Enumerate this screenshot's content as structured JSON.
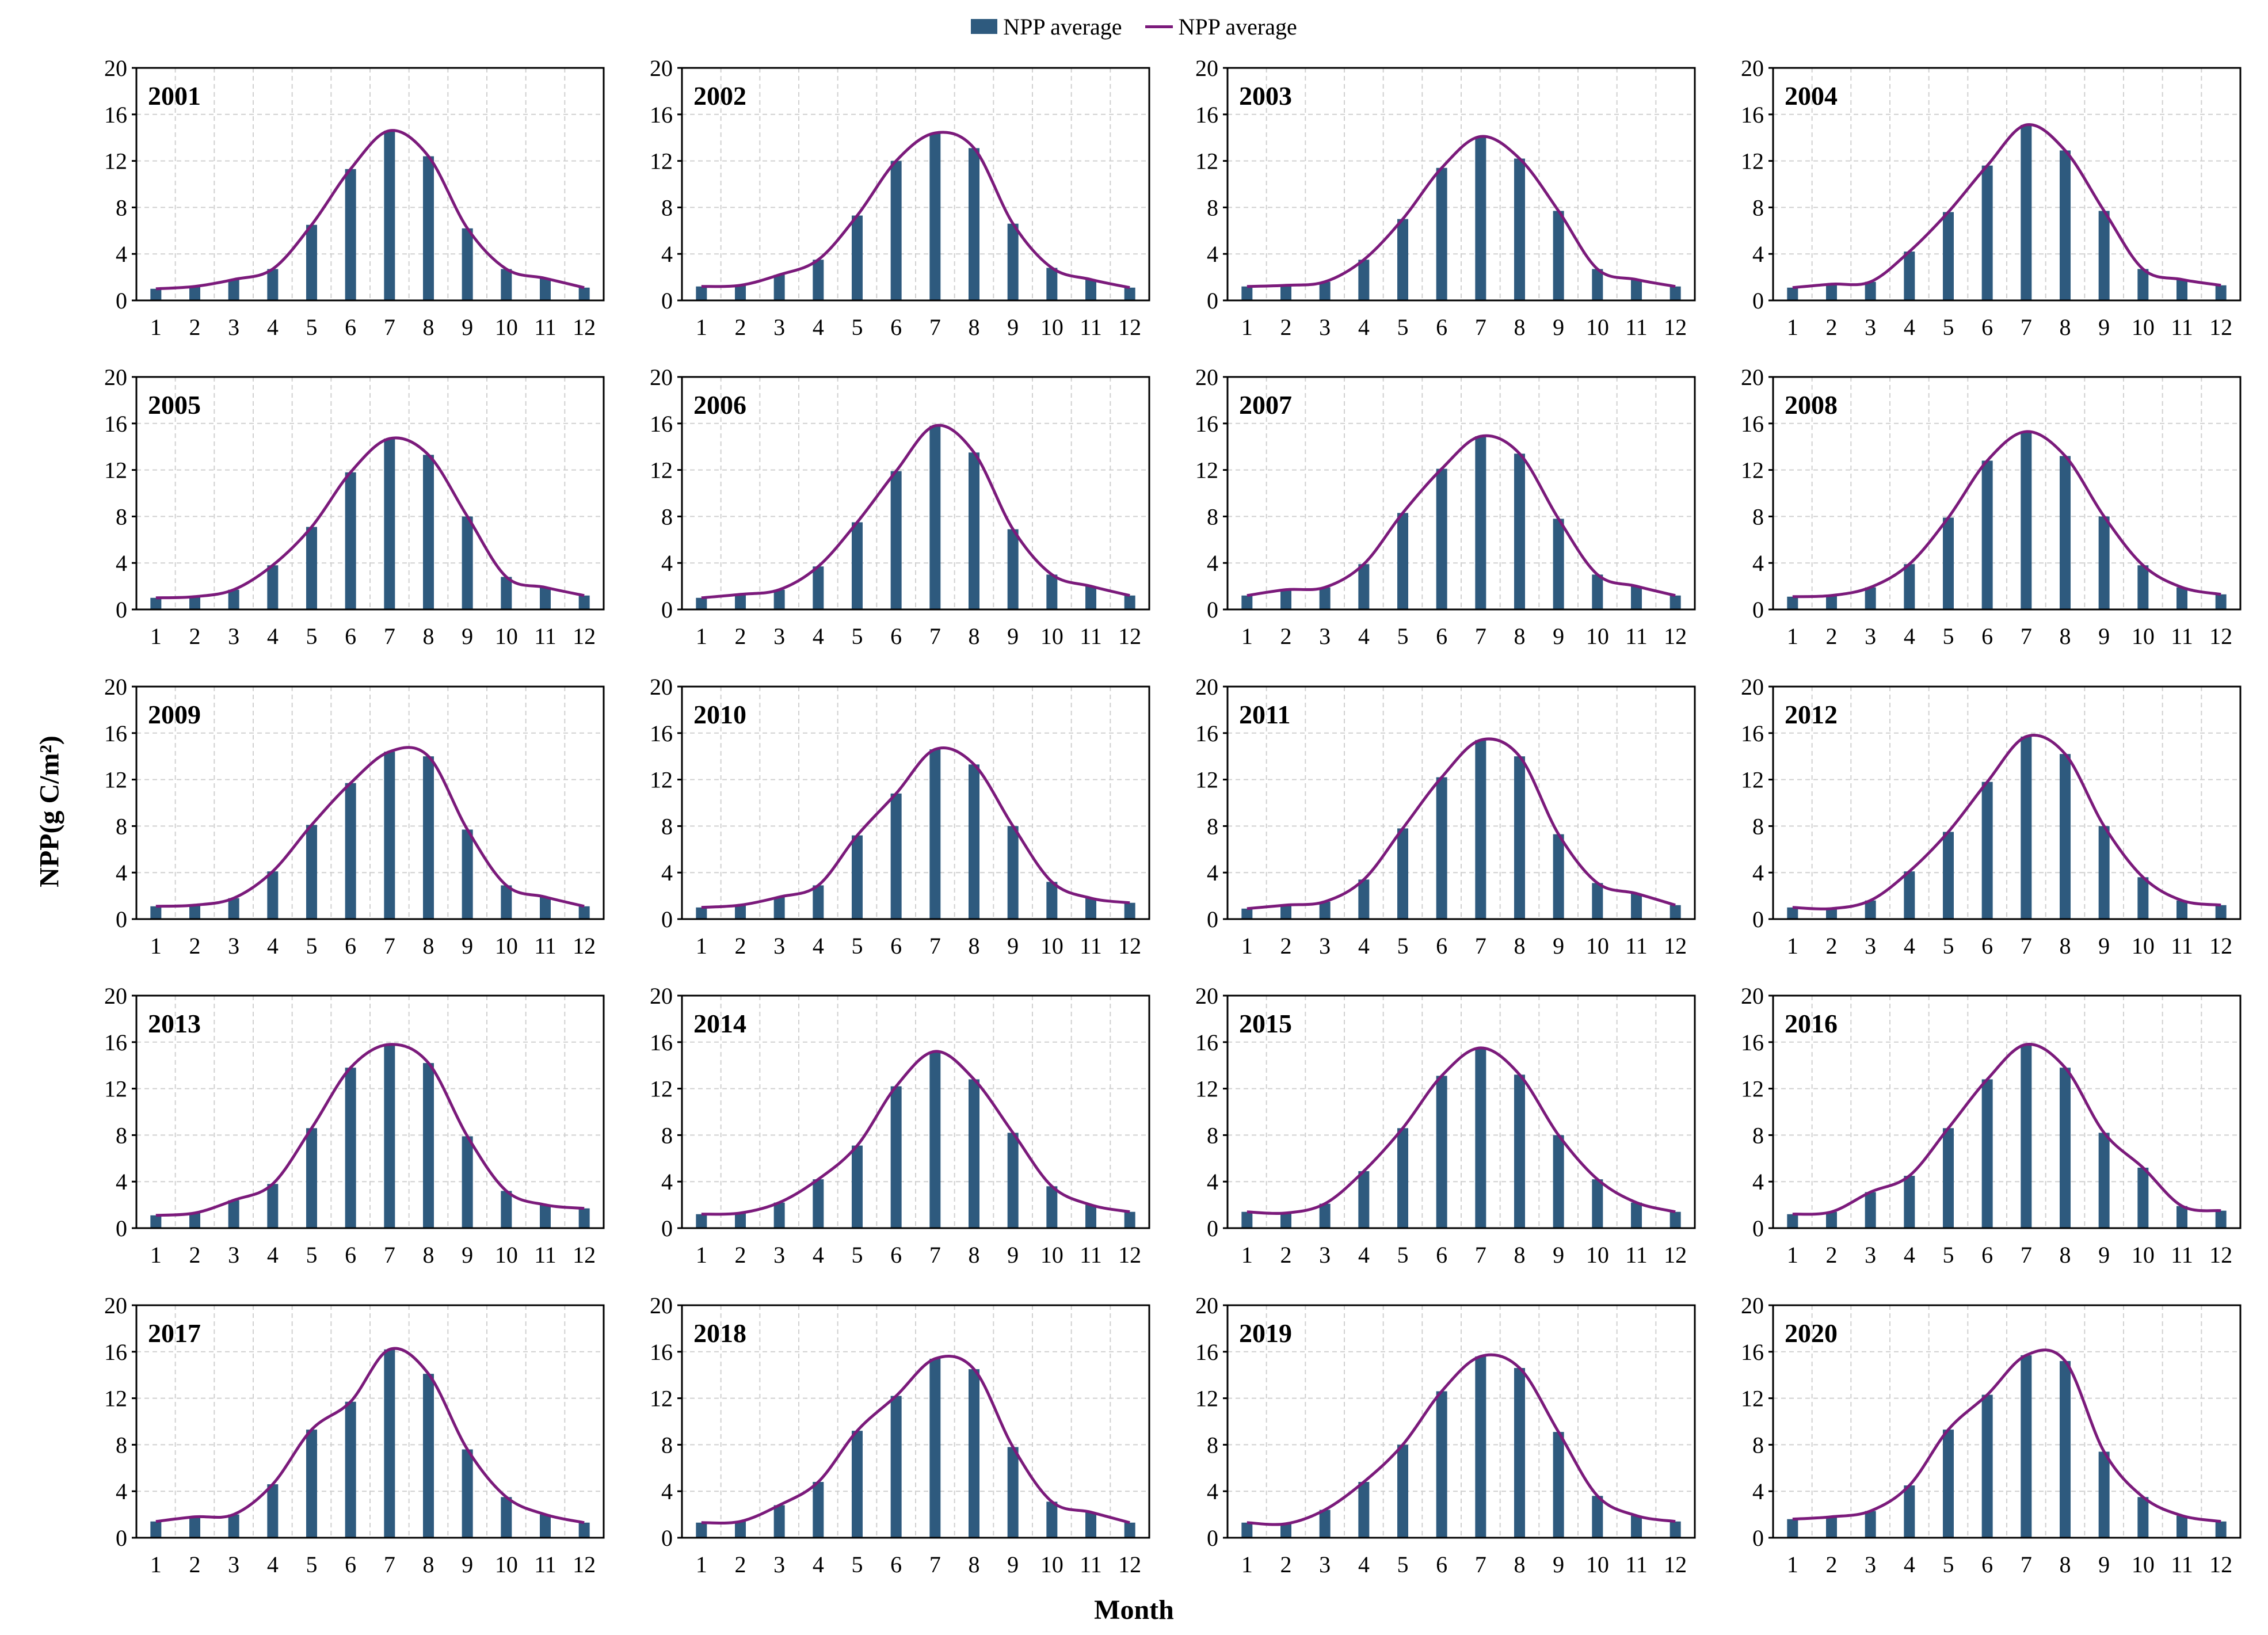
{
  "legend": {
    "bar_label": "NPP average",
    "line_label": "NPP average"
  },
  "axes": {
    "ylabel": "NPP(g C/m²)",
    "xlabel": "Month"
  },
  "colors": {
    "bar": "#2e5a7e",
    "line": "#7b1a7b",
    "grid": "#d0d0d0",
    "frame": "#000000"
  },
  "chart_data": {
    "type": "bar",
    "layout": "small multiples, 5 rows x 4 columns",
    "categories": [
      "1",
      "2",
      "3",
      "4",
      "5",
      "6",
      "7",
      "8",
      "9",
      "10",
      "11",
      "12"
    ],
    "ylim": [
      0,
      20
    ],
    "yticks": [
      0,
      4,
      8,
      12,
      16,
      20
    ],
    "grid": true,
    "legend_position": "top-center",
    "panels": [
      {
        "title": "2001",
        "values": [
          1.0,
          1.2,
          1.8,
          2.7,
          6.5,
          11.3,
          14.6,
          12.4,
          6.2,
          2.7,
          1.9,
          1.1
        ]
      },
      {
        "title": "2002",
        "values": [
          1.2,
          1.3,
          2.2,
          3.5,
          7.3,
          12.0,
          14.4,
          13.1,
          6.6,
          2.8,
          1.8,
          1.1
        ]
      },
      {
        "title": "2003",
        "values": [
          1.2,
          1.3,
          1.6,
          3.5,
          7.0,
          11.4,
          14.1,
          12.2,
          7.7,
          2.7,
          1.8,
          1.2
        ]
      },
      {
        "title": "2004",
        "values": [
          1.1,
          1.4,
          1.6,
          4.2,
          7.6,
          11.6,
          15.1,
          12.9,
          7.7,
          2.7,
          1.8,
          1.3
        ]
      },
      {
        "title": "2005",
        "values": [
          1.0,
          1.1,
          1.7,
          3.8,
          7.1,
          11.8,
          14.7,
          13.3,
          8.0,
          2.8,
          1.9,
          1.2
        ]
      },
      {
        "title": "2006",
        "values": [
          1.0,
          1.3,
          1.7,
          3.7,
          7.5,
          11.9,
          15.8,
          13.5,
          6.9,
          3.0,
          2.0,
          1.2
        ]
      },
      {
        "title": "2007",
        "values": [
          1.2,
          1.7,
          1.9,
          3.9,
          8.3,
          12.1,
          14.9,
          13.4,
          7.8,
          3.0,
          2.0,
          1.2
        ]
      },
      {
        "title": "2008",
        "values": [
          1.1,
          1.2,
          1.9,
          3.9,
          7.9,
          12.8,
          15.3,
          13.2,
          8.0,
          3.8,
          1.9,
          1.3
        ]
      },
      {
        "title": "2009",
        "values": [
          1.1,
          1.2,
          1.8,
          4.1,
          8.1,
          11.7,
          14.4,
          14.0,
          7.7,
          2.9,
          1.9,
          1.1
        ]
      },
      {
        "title": "2010",
        "values": [
          1.0,
          1.2,
          1.9,
          2.9,
          7.2,
          10.8,
          14.6,
          13.3,
          8.0,
          3.2,
          1.8,
          1.4
        ]
      },
      {
        "title": "2011",
        "values": [
          0.9,
          1.2,
          1.5,
          3.4,
          7.8,
          12.2,
          15.4,
          14.0,
          7.3,
          3.1,
          2.2,
          1.2
        ]
      },
      {
        "title": "2012",
        "values": [
          1.0,
          0.9,
          1.6,
          4.1,
          7.5,
          11.8,
          15.7,
          14.2,
          8.0,
          3.6,
          1.6,
          1.2
        ]
      },
      {
        "title": "2013",
        "values": [
          1.1,
          1.3,
          2.4,
          3.8,
          8.6,
          13.8,
          15.8,
          14.2,
          7.9,
          3.2,
          2.0,
          1.7
        ]
      },
      {
        "title": "2014",
        "values": [
          1.2,
          1.3,
          2.2,
          4.2,
          7.1,
          12.2,
          15.2,
          12.8,
          8.2,
          3.6,
          2.0,
          1.4
        ]
      },
      {
        "title": "2015",
        "values": [
          1.4,
          1.3,
          2.1,
          4.9,
          8.6,
          13.1,
          15.5,
          13.2,
          8.0,
          4.2,
          2.2,
          1.4
        ]
      },
      {
        "title": "2016",
        "values": [
          1.2,
          1.4,
          3.1,
          4.5,
          8.6,
          12.8,
          15.8,
          13.8,
          8.2,
          5.2,
          1.9,
          1.5
        ]
      },
      {
        "title": "2017",
        "values": [
          1.4,
          1.8,
          2.0,
          4.6,
          9.3,
          11.7,
          16.2,
          14.1,
          7.6,
          3.5,
          2.0,
          1.3
        ]
      },
      {
        "title": "2018",
        "values": [
          1.3,
          1.4,
          2.8,
          4.8,
          9.2,
          12.2,
          15.4,
          14.5,
          7.8,
          3.1,
          2.2,
          1.3
        ]
      },
      {
        "title": "2019",
        "values": [
          1.3,
          1.2,
          2.4,
          4.8,
          8.0,
          12.6,
          15.6,
          14.6,
          9.1,
          3.6,
          1.9,
          1.4
        ]
      },
      {
        "title": "2020",
        "values": [
          1.6,
          1.8,
          2.3,
          4.5,
          9.3,
          12.3,
          15.7,
          15.2,
          7.4,
          3.5,
          1.9,
          1.4
        ]
      }
    ]
  }
}
